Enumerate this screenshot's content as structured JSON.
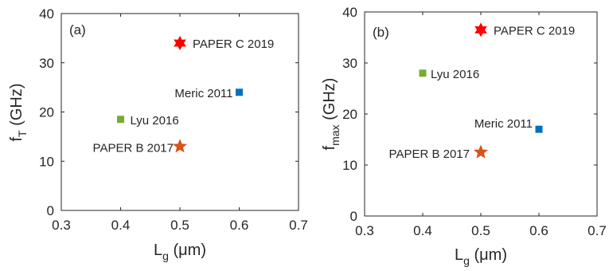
{
  "chart_data": [
    {
      "type": "scatter",
      "panel_label": "(a)",
      "xlabel": {
        "main": "L",
        "sub": "g",
        "unit": " (μm)"
      },
      "ylabel": {
        "main": "f",
        "sub": "T",
        "unit": " (GHz)"
      },
      "xlim": [
        0.3,
        0.7
      ],
      "ylim": [
        0,
        40
      ],
      "xticks": [
        "0.3",
        "0.4",
        "0.5",
        "0.6",
        "0.7"
      ],
      "yticks": [
        "0",
        "10",
        "20",
        "30",
        "40"
      ],
      "grid": false,
      "points": [
        {
          "label": "PAPER C 2019",
          "x": 0.5,
          "y": 34,
          "marker": "hexagram",
          "color": "#ff0000"
        },
        {
          "label": "Meric 2011",
          "x": 0.6,
          "y": 24,
          "marker": "square",
          "color": "#0072bd"
        },
        {
          "label": "Lyu 2016",
          "x": 0.4,
          "y": 18.5,
          "marker": "square",
          "color": "#77ac30"
        },
        {
          "label": "PAPER B 2017",
          "x": 0.5,
          "y": 13,
          "marker": "pentagram",
          "color": "#d95319"
        }
      ]
    },
    {
      "type": "scatter",
      "panel_label": "(b)",
      "xlabel": {
        "main": "L",
        "sub": "g",
        "unit": " (μm)"
      },
      "ylabel": {
        "main": "f",
        "sub": "max",
        "unit": " (GHz)"
      },
      "xlim": [
        0.3,
        0.7
      ],
      "ylim": [
        0,
        40
      ],
      "xticks": [
        "0.3",
        "0.4",
        "0.5",
        "0.6",
        "0.7"
      ],
      "yticks": [
        "0",
        "10",
        "20",
        "30",
        "40"
      ],
      "grid": false,
      "points": [
        {
          "label": "PAPER C 2019",
          "x": 0.5,
          "y": 36.5,
          "marker": "hexagram",
          "color": "#ff0000"
        },
        {
          "label": "Lyu 2016",
          "x": 0.4,
          "y": 28,
          "marker": "square",
          "color": "#77ac30"
        },
        {
          "label": "Meric 2011",
          "x": 0.6,
          "y": 17,
          "marker": "square",
          "color": "#0072bd"
        },
        {
          "label": "PAPER B 2017",
          "x": 0.5,
          "y": 12.5,
          "marker": "pentagram",
          "color": "#d95319"
        }
      ]
    }
  ]
}
